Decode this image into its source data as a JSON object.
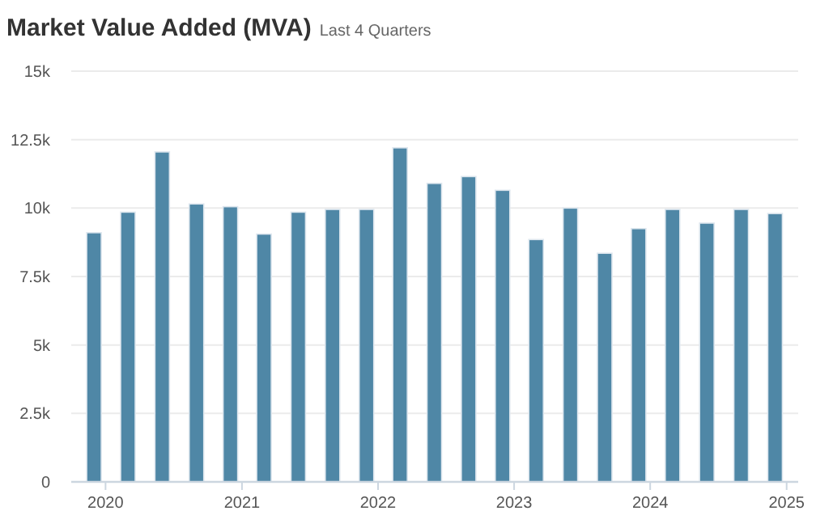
{
  "chart_data": {
    "type": "bar",
    "title": "Market Value Added (MVA)",
    "subtitle": "Last 4 Quarters",
    "x": [
      "2019-12",
      "2020-03",
      "2020-06",
      "2020-09",
      "2020-12",
      "2021-03",
      "2021-06",
      "2021-09",
      "2021-12",
      "2022-03",
      "2022-06",
      "2022-09",
      "2022-12",
      "2023-03",
      "2023-06",
      "2023-09",
      "2023-12",
      "2024-03",
      "2024-06",
      "2024-09",
      "2024-12"
    ],
    "values": [
      9100,
      9850,
      12050,
      10150,
      10050,
      9050,
      9850,
      9950,
      9950,
      12200,
      10900,
      11150,
      10650,
      8850,
      10000,
      8350,
      9250,
      9950,
      9450,
      9950,
      9800
    ],
    "color": "#4f87a6",
    "xlim": [
      "2019-10",
      "2025-02"
    ],
    "xticks": [
      {
        "value": "2020",
        "label": "2020"
      },
      {
        "value": "2021",
        "label": "2021"
      },
      {
        "value": "2022",
        "label": "2022"
      },
      {
        "value": "2023",
        "label": "2023"
      },
      {
        "value": "2024",
        "label": "2024"
      },
      {
        "value": "2025",
        "label": "2025"
      }
    ],
    "ylim": [
      0,
      15000
    ],
    "yticks": [
      {
        "value": 0,
        "label": "0"
      },
      {
        "value": 2500,
        "label": "2.5k"
      },
      {
        "value": 5000,
        "label": "5k"
      },
      {
        "value": 7500,
        "label": "7.5k"
      },
      {
        "value": 10000,
        "label": "10k"
      },
      {
        "value": 12500,
        "label": "12.5k"
      },
      {
        "value": 15000,
        "label": "15k"
      }
    ],
    "grid": "y"
  }
}
